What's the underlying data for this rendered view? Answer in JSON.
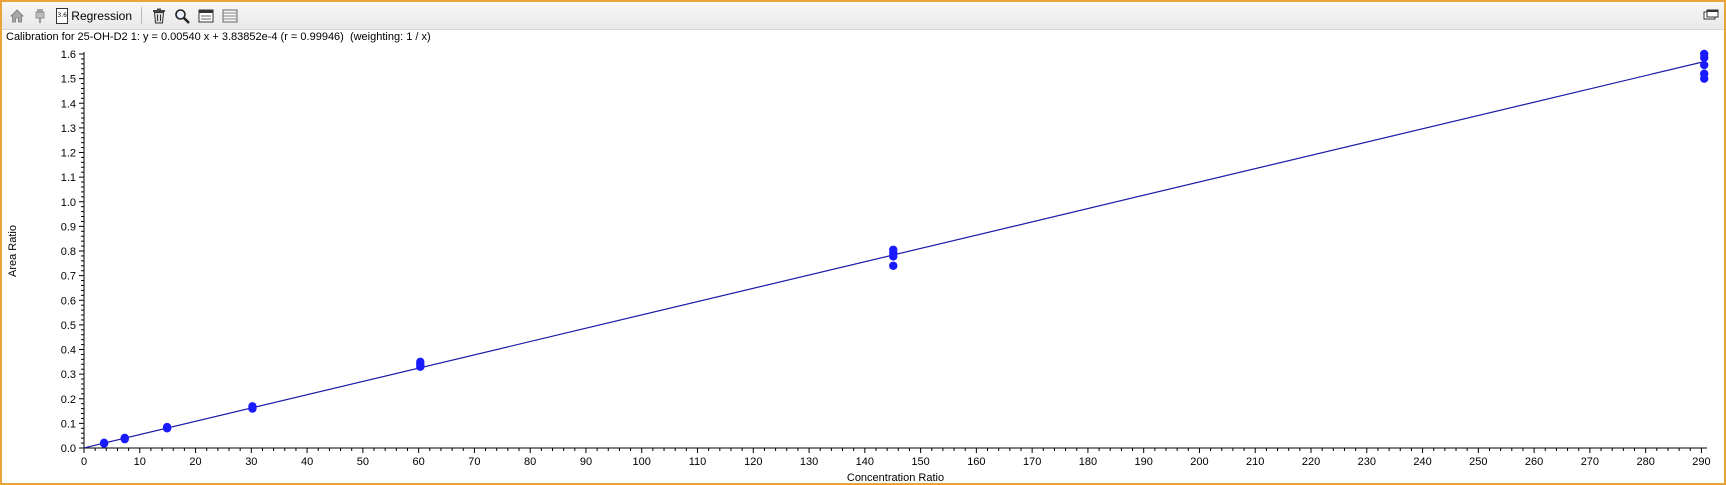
{
  "toolbar": {
    "regression_label": "Regression",
    "regression_box": "3.6"
  },
  "title": "Calibration for 25-OH-D2 1: y = 0.00540 x + 3.83852e-4 (r = 0.99946)  (weighting: 1 / x)",
  "colors": {
    "points": "#1a1aff",
    "line": "#1a1aa8",
    "border": "#e8a33a"
  },
  "chart_data": {
    "type": "scatter",
    "title": "Calibration for 25-OH-D2 1: y = 0.00540 x + 3.83852e-4 (r = 0.99946)  (weighting: 1 / x)",
    "xlabel": "Concentration Ratio",
    "ylabel": "Area Ratio",
    "xlim": [
      0,
      291
    ],
    "ylim": [
      0,
      1.6
    ],
    "x_ticks": [
      0,
      10,
      20,
      30,
      40,
      50,
      60,
      70,
      80,
      90,
      100,
      110,
      120,
      130,
      140,
      150,
      160,
      170,
      180,
      190,
      200,
      210,
      220,
      230,
      240,
      250,
      260,
      270,
      280,
      290
    ],
    "y_ticks": [
      0.0,
      0.1,
      0.2,
      0.3,
      0.4,
      0.5,
      0.6,
      0.7,
      0.8,
      0.9,
      1.0,
      1.1,
      1.2,
      1.3,
      1.4,
      1.5,
      1.6
    ],
    "y_tick_labels": [
      "0.0",
      "0.1",
      "0.2",
      "0.3",
      "0.4",
      "0.5",
      "0.6",
      "0.7",
      "0.8",
      "0.9",
      "1.0",
      "1.1",
      "1.2",
      "1.3",
      "1.4",
      "1.5",
      "1.6"
    ],
    "regression": {
      "slope": 0.0054,
      "intercept": 0.000383852,
      "x_range": [
        0,
        290.5
      ]
    },
    "grid": false,
    "points": [
      {
        "x": 3.6,
        "y": 0.018
      },
      {
        "x": 3.6,
        "y": 0.021
      },
      {
        "x": 7.3,
        "y": 0.036
      },
      {
        "x": 7.3,
        "y": 0.041
      },
      {
        "x": 14.9,
        "y": 0.08
      },
      {
        "x": 14.9,
        "y": 0.085
      },
      {
        "x": 30.2,
        "y": 0.16
      },
      {
        "x": 30.2,
        "y": 0.169
      },
      {
        "x": 60.3,
        "y": 0.33
      },
      {
        "x": 60.3,
        "y": 0.339
      },
      {
        "x": 60.3,
        "y": 0.35
      },
      {
        "x": 145.1,
        "y": 0.74
      },
      {
        "x": 145.1,
        "y": 0.778
      },
      {
        "x": 145.1,
        "y": 0.792
      },
      {
        "x": 145.1,
        "y": 0.805
      },
      {
        "x": 290.5,
        "y": 1.5
      },
      {
        "x": 290.5,
        "y": 1.52
      },
      {
        "x": 290.5,
        "y": 1.555
      },
      {
        "x": 290.5,
        "y": 1.585
      },
      {
        "x": 290.5,
        "y": 1.6
      }
    ]
  }
}
